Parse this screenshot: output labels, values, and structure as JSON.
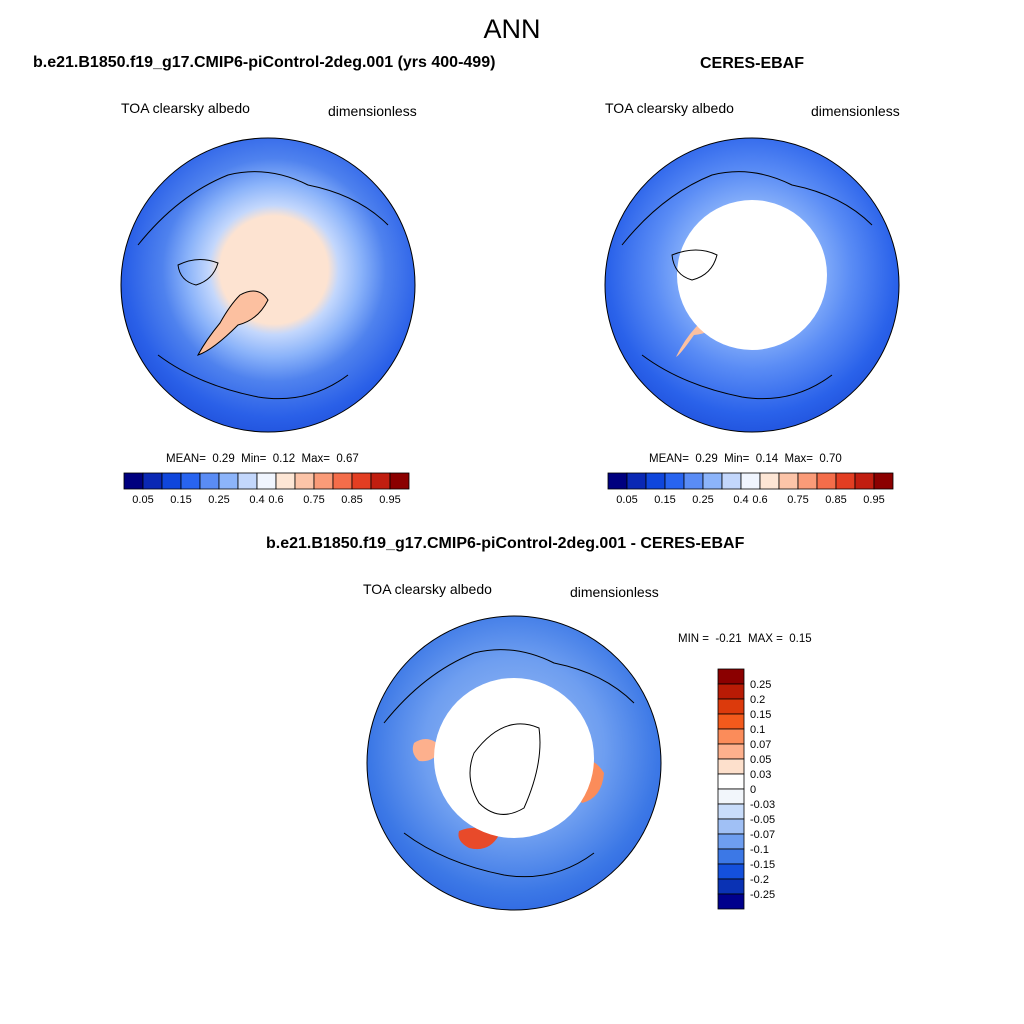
{
  "figure": {
    "title": "ANN"
  },
  "panels": [
    {
      "id": "model",
      "case_title": "b.e21.B1850.f19_g17.CMIP6-piControl-2deg.001 (yrs 400-499)",
      "variable": "TOA clearsky albedo",
      "units": "dimensionless",
      "stats": {
        "mean_label": "MEAN=",
        "mean": "0.29",
        "min_label": "Min=",
        "min": "0.12",
        "max_label": "Max=",
        "max": "0.67"
      },
      "colorbar_ticks": [
        "0.05",
        "0.15",
        "0.25",
        "0.4",
        "0.6",
        "0.75",
        "0.85",
        "0.95"
      ]
    },
    {
      "id": "obs",
      "case_title": "CERES-EBAF",
      "variable": "TOA clearsky albedo",
      "units": "dimensionless",
      "stats": {
        "mean_label": "MEAN=",
        "mean": "0.29",
        "min_label": "Min=",
        "min": "0.14",
        "max_label": "Max=",
        "max": "0.70"
      },
      "colorbar_ticks": [
        "0.05",
        "0.15",
        "0.25",
        "0.4",
        "0.6",
        "0.75",
        "0.85",
        "0.95"
      ]
    },
    {
      "id": "diff",
      "case_title": "b.e21.B1850.f19_g17.CMIP6-piControl-2deg.001 - CERES-EBAF",
      "variable": "TOA clearsky albedo",
      "units": "dimensionless",
      "stats": {
        "min_label": "MIN =",
        "min": "-0.21",
        "max_label": "MAX =",
        "max": "0.15"
      },
      "colorbar_ticks": [
        "0.25",
        "0.2",
        "0.15",
        "0.1",
        "0.07",
        "0.05",
        "0.03",
        "0",
        "-0.03",
        "-0.05",
        "-0.07",
        "-0.1",
        "-0.15",
        "-0.2",
        "-0.25"
      ]
    }
  ],
  "colors": {
    "abs_scale": [
      "#00007f",
      "#0a28b4",
      "#0f46dc",
      "#2864f0",
      "#5a8cf5",
      "#8cb4fa",
      "#c3d7fc",
      "#f0f5fe",
      "#fde6d5",
      "#fcc4a8",
      "#fa9b78",
      "#f46d4a",
      "#e33e22",
      "#c11e10",
      "#8b0000"
    ],
    "diff_scale": [
      "#8b0000",
      "#b81b05",
      "#dc3a0c",
      "#f35a1c",
      "#fb8c5a",
      "#fdb08d",
      "#fde0cc",
      "#f2f6fb",
      "#c8dcfa",
      "#a0c0f5",
      "#6e9ef0",
      "#3c78e6",
      "#1450dc",
      "#0a32b4",
      "#00008c"
    ],
    "deep_ocean": "#1e4fd8",
    "mid_ocean": "#3f78ea",
    "ice_cap": "#fde3d1",
    "greenland": "#fcc0a0"
  }
}
